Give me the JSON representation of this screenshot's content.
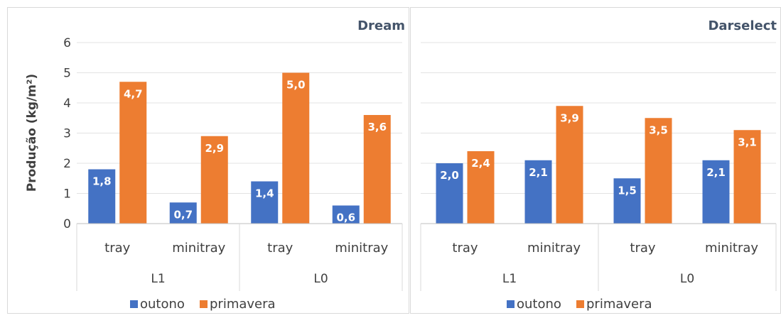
{
  "chart_data": [
    {
      "type": "bar",
      "title": "Dream",
      "ylabel": "Produção (kg/m²)",
      "xlabel": "",
      "ylim": [
        0,
        6
      ],
      "yticks": [
        "0",
        "1",
        "2",
        "3",
        "4",
        "5",
        "6"
      ],
      "groups": [
        "L1",
        "L0"
      ],
      "categories": [
        "tray",
        "minitray",
        "tray",
        "minitray"
      ],
      "series": [
        {
          "name": "outono",
          "color": "#4472c4",
          "values": [
            1.8,
            0.7,
            1.4,
            0.6
          ],
          "labels": [
            "1,8",
            "0,7",
            "1,4",
            "0,6"
          ]
        },
        {
          "name": "primavera",
          "color": "#ed7d31",
          "values": [
            4.7,
            2.9,
            5.0,
            3.6
          ],
          "labels": [
            "4,7",
            "2,9",
            "5,0",
            "3,6"
          ]
        }
      ],
      "grid": true,
      "legend": "bottom"
    },
    {
      "type": "bar",
      "title": "Darselect",
      "ylabel": "",
      "xlabel": "",
      "ylim": [
        0,
        6
      ],
      "groups": [
        "L1",
        "L0"
      ],
      "categories": [
        "tray",
        "minitray",
        "tray",
        "minitray"
      ],
      "series": [
        {
          "name": "outono",
          "color": "#4472c4",
          "values": [
            2.0,
            2.1,
            1.5,
            2.1
          ],
          "labels": [
            "2,0",
            "2,1",
            "1,5",
            "2,1"
          ]
        },
        {
          "name": "primavera",
          "color": "#ed7d31",
          "values": [
            2.4,
            3.9,
            3.5,
            3.1
          ],
          "labels": [
            "2,4",
            "3,9",
            "3,5",
            "3,1"
          ]
        }
      ],
      "grid": true,
      "legend": "bottom"
    }
  ]
}
